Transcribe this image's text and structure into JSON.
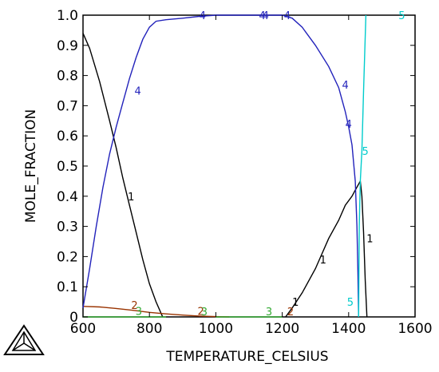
{
  "chart_data": {
    "type": "line",
    "xlabel": "TEMPERATURE_CELSIUS",
    "ylabel": "MOLE_FRACTION",
    "xlim": [
      600,
      1600
    ],
    "ylim": [
      0,
      1
    ],
    "xticks": [
      600,
      800,
      1000,
      1200,
      1400,
      1600
    ],
    "yticks": [
      0,
      0.1,
      0.2,
      0.3,
      0.4,
      0.5,
      0.6,
      0.7,
      0.8,
      0.9,
      1.0
    ],
    "ytick_labels": [
      "0",
      "0.1",
      "0.2",
      "0.3",
      "0.4",
      "0.5",
      "0.6",
      "0.7",
      "0.8",
      "0.9",
      "1.0"
    ],
    "grid": false,
    "series": [
      {
        "name": "1",
        "color": "#000000",
        "segments": [
          [
            [
              600,
              0.94
            ],
            [
              620,
              0.89
            ],
            [
              650,
              0.78
            ],
            [
              680,
              0.65
            ],
            [
              700,
              0.56
            ],
            [
              720,
              0.46
            ],
            [
              740,
              0.37
            ],
            [
              760,
              0.28
            ],
            [
              780,
              0.19
            ],
            [
              800,
              0.11
            ],
            [
              820,
              0.05
            ],
            [
              840,
              0.0
            ]
          ],
          [
            [
              1210,
              0.0
            ],
            [
              1230,
              0.03
            ],
            [
              1260,
              0.08
            ],
            [
              1300,
              0.16
            ],
            [
              1340,
              0.26
            ],
            [
              1370,
              0.32
            ],
            [
              1390,
              0.37
            ],
            [
              1410,
              0.4
            ],
            [
              1420,
              0.42
            ],
            [
              1430,
              0.44
            ],
            [
              1435,
              0.45
            ],
            [
              1440,
              0.4
            ],
            [
              1445,
              0.28
            ],
            [
              1450,
              0.12
            ],
            [
              1455,
              0.0
            ]
          ]
        ],
        "labels": [
          [
            745,
            0.4
          ],
          [
            1323,
            0.19
          ],
          [
            1464,
            0.26
          ],
          [
            1240,
            0.05
          ]
        ]
      },
      {
        "name": "2",
        "color": "#993300",
        "segments": [
          [
            [
              600,
              0.035
            ],
            [
              650,
              0.033
            ],
            [
              700,
              0.028
            ],
            [
              750,
              0.022
            ],
            [
              800,
              0.015
            ],
            [
              850,
              0.01
            ],
            [
              900,
              0.006
            ],
            [
              950,
              0.003
            ],
            [
              1000,
              0.001
            ],
            [
              1040,
              0.0
            ]
          ]
        ],
        "labels": [
          [
            755,
            0.04
          ],
          [
            955,
            0.02
          ],
          [
            1225,
            0.018
          ]
        ]
      },
      {
        "name": "3",
        "color": "#33aa33",
        "segments": [
          [
            [
              600,
              0.0
            ],
            [
              850,
              0.0
            ]
          ],
          [
            [
              1000,
              0.0
            ],
            [
              1200,
              0.0
            ]
          ]
        ],
        "labels": [
          [
            768,
            0.02
          ],
          [
            965,
            0.018
          ],
          [
            1160,
            0.018
          ]
        ]
      },
      {
        "name": "4",
        "color": "#2222bb",
        "segments": [
          [
            [
              600,
              0.03
            ],
            [
              620,
              0.16
            ],
            [
              640,
              0.3
            ],
            [
              660,
              0.43
            ],
            [
              680,
              0.54
            ],
            [
              700,
              0.63
            ],
            [
              720,
              0.71
            ],
            [
              740,
              0.79
            ],
            [
              760,
              0.86
            ],
            [
              780,
              0.92
            ],
            [
              800,
              0.96
            ],
            [
              820,
              0.98
            ],
            [
              850,
              0.985
            ],
            [
              900,
              0.99
            ],
            [
              950,
              0.996
            ],
            [
              1000,
              1.0
            ],
            [
              1100,
              1.0
            ],
            [
              1200,
              1.0
            ],
            [
              1230,
              0.99
            ],
            [
              1260,
              0.96
            ],
            [
              1300,
              0.9
            ],
            [
              1340,
              0.83
            ],
            [
              1370,
              0.76
            ],
            [
              1390,
              0.68
            ],
            [
              1400,
              0.63
            ],
            [
              1410,
              0.57
            ],
            [
              1420,
              0.45
            ],
            [
              1425,
              0.3
            ],
            [
              1428,
              0.15
            ],
            [
              1430,
              0.0
            ]
          ]
        ],
        "labels": [
          [
            765,
            0.75
          ],
          [
            960,
            1.0
          ],
          [
            1140,
            1.0
          ],
          [
            1150,
            1.0
          ],
          [
            1215,
            1.0
          ],
          [
            1390,
            0.77
          ],
          [
            1400,
            0.64
          ]
        ]
      },
      {
        "name": "5",
        "color": "#00cccc",
        "segments": [
          [
            [
              1430,
              0.0
            ],
            [
              1432,
              0.3
            ],
            [
              1435,
              0.45
            ],
            [
              1440,
              0.55
            ],
            [
              1445,
              0.75
            ],
            [
              1452,
              1.0
            ]
          ]
        ],
        "labels": [
          [
            1560,
            1.0
          ],
          [
            1450,
            0.55
          ],
          [
            1405,
            0.05
          ]
        ]
      }
    ]
  }
}
